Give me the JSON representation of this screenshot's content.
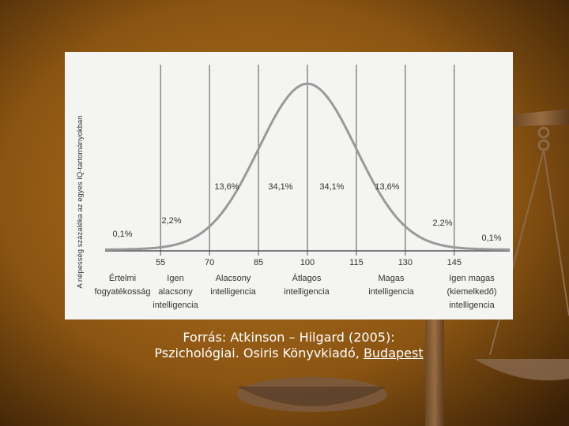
{
  "chart_data": {
    "type": "bell",
    "y_axis_label": "A népesség százaléka az egyes IQ-tartományokban",
    "xlim": [
      38,
      162
    ],
    "xticks": [
      55,
      70,
      85,
      100,
      115,
      130,
      145
    ],
    "grid": true,
    "region_labels": [
      "0,1%",
      "2,2%",
      "13,6%",
      "34,1%",
      "34,1%",
      "13,6%",
      "2,2%",
      "0,1%"
    ],
    "bands": [
      [
        "Értelmi",
        "fogyatékosság"
      ],
      [
        "Igen",
        "alacsony",
        "intelligencia"
      ],
      [
        "Alacsony",
        "intelligencia"
      ],
      [
        "Átlagos",
        "intelligencia"
      ],
      [
        "Magas",
        "intelligencia"
      ],
      [
        "Igen magas",
        "(kiemelkedő)",
        "intelligencia"
      ]
    ]
  },
  "caption": {
    "line1": "Forrás: Atkinson – Hilgard (2005):",
    "line2": "Pszichológiai. Osiris Könyvkiadó,",
    "link": "Budapest"
  }
}
